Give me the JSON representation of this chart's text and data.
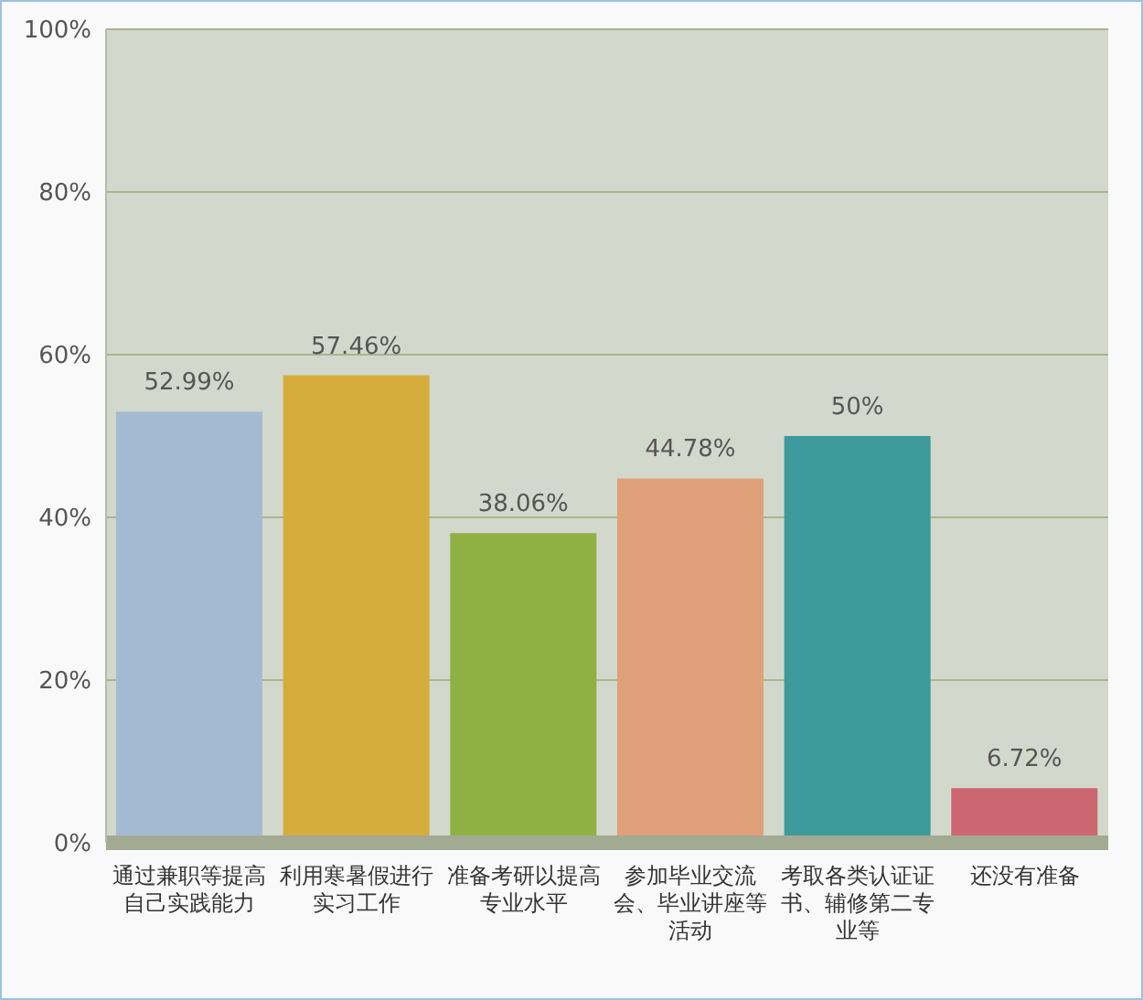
{
  "chart_data": {
    "type": "bar",
    "categories": [
      "通过兼职等提高自己实践能力",
      "利用寒暑假进行实习工作",
      "准备考研以提高专业水平",
      "参加毕业交流会、毕业讲座等活动",
      "考取各类认证证书、辅修第二专业等",
      "还没有准备"
    ],
    "values": [
      52.99,
      57.46,
      38.06,
      44.78,
      50,
      6.72
    ],
    "colors": [
      "#a4bad3",
      "#d6ad3c",
      "#8fb043",
      "#e0a07a",
      "#3c9a9c",
      "#cc6670"
    ],
    "value_labels": [
      "52.99%",
      "57.46%",
      "38.06%",
      "44.78%",
      "50%",
      "6.72%"
    ],
    "ylim": [
      0,
      100
    ],
    "yticks": [
      {
        "value": 0,
        "label": "0%"
      },
      {
        "value": 20,
        "label": "20%"
      },
      {
        "value": 40,
        "label": "40%"
      },
      {
        "value": 60,
        "label": "60%"
      },
      {
        "value": 80,
        "label": "80%"
      },
      {
        "value": 100,
        "label": "100%"
      }
    ],
    "grid": "y"
  }
}
